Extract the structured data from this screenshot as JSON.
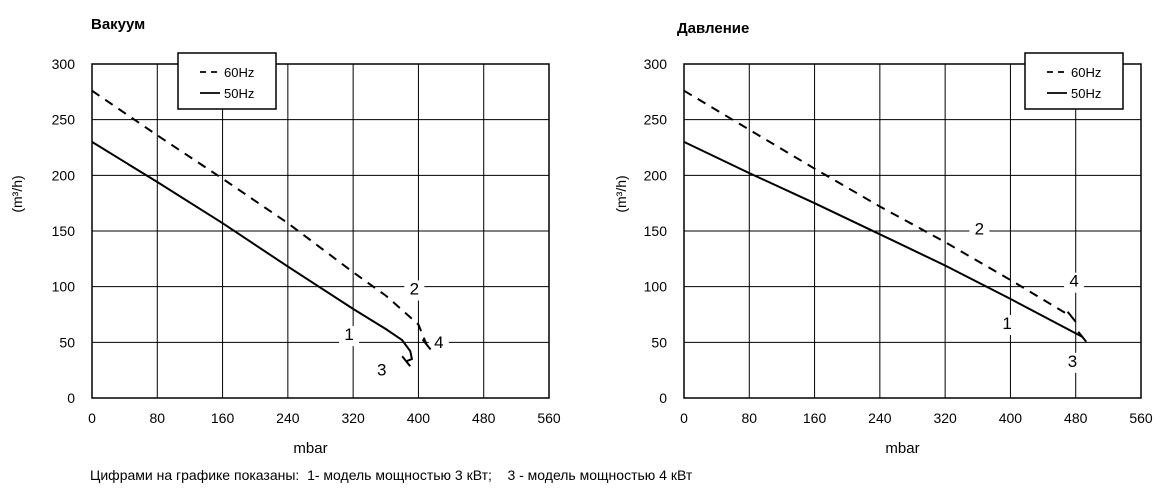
{
  "footnote": "Цифрами на графике показаны:  1- модель мощностью 3 кВт;    3 - модель мощностью 4 кВт",
  "chart_data": [
    {
      "type": "line",
      "title": "Вакуум",
      "xlabel": "mbar",
      "ylabel": "(m³/h)",
      "xlim": [
        0,
        560
      ],
      "ylim": [
        0,
        300
      ],
      "xticks": [
        "0",
        "80",
        "160",
        "240",
        "320",
        "400",
        "480",
        "560"
      ],
      "yticks": [
        "0",
        "50",
        "100",
        "150",
        "200",
        "250",
        "300"
      ],
      "grid": true,
      "legend_position": "top-left",
      "series": [
        {
          "name": "60Hz",
          "style": "dashed",
          "points": [
            [
              0,
              276
            ],
            [
              80,
              236
            ],
            [
              160,
              197
            ],
            [
              240,
              157
            ],
            [
              320,
              113
            ],
            [
              360,
              92
            ],
            [
              400,
              66
            ],
            [
              410,
              48
            ]
          ]
        },
        {
          "name": "50Hz",
          "style": "solid",
          "points": [
            [
              0,
              230
            ],
            [
              80,
              194
            ],
            [
              160,
              157
            ],
            [
              240,
              118
            ],
            [
              320,
              80
            ],
            [
              360,
              62
            ],
            [
              380,
              52
            ],
            [
              390,
              42
            ],
            [
              392,
              35
            ],
            [
              385,
              33
            ]
          ]
        }
      ],
      "annotations": [
        {
          "text": "1",
          "x": 315,
          "y": 52
        },
        {
          "text": "2",
          "x": 395,
          "y": 93
        },
        {
          "text": "3",
          "x": 355,
          "y": 20
        },
        {
          "text": "4",
          "x": 425,
          "y": 45
        }
      ]
    },
    {
      "type": "line",
      "title": "Давление",
      "xlabel": "mbar",
      "ylabel": "(m³/h)",
      "xlim": [
        0,
        560
      ],
      "ylim": [
        0,
        300
      ],
      "xticks": [
        "0",
        "80",
        "160",
        "240",
        "320",
        "400",
        "480",
        "560"
      ],
      "yticks": [
        "0",
        "50",
        "100",
        "150",
        "200",
        "250",
        "300"
      ],
      "grid": true,
      "legend_position": "top-right",
      "series": [
        {
          "name": "60Hz",
          "style": "dashed",
          "points": [
            [
              0,
              276
            ],
            [
              80,
              241
            ],
            [
              160,
              206
            ],
            [
              240,
              172
            ],
            [
              320,
              140
            ],
            [
              400,
              106
            ],
            [
              475,
              73
            ]
          ]
        },
        {
          "name": "50Hz",
          "style": "solid",
          "points": [
            [
              0,
              230
            ],
            [
              80,
              202
            ],
            [
              160,
              175
            ],
            [
              240,
              147
            ],
            [
              320,
              119
            ],
            [
              400,
              89
            ],
            [
              488,
              55
            ]
          ]
        }
      ],
      "annotations": [
        {
          "text": "2",
          "x": 362,
          "y": 147
        },
        {
          "text": "4",
          "x": 478,
          "y": 100
        },
        {
          "text": "1",
          "x": 396,
          "y": 62
        },
        {
          "text": "3",
          "x": 476,
          "y": 28
        }
      ]
    }
  ]
}
